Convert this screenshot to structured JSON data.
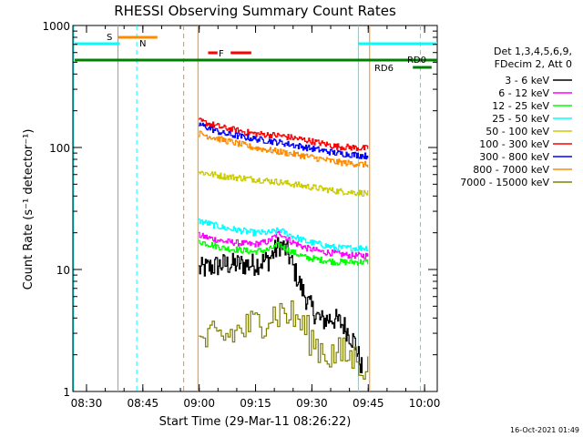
{
  "chart_data": {
    "type": "line",
    "title": "RHESSI Observing Summary Count Rates",
    "xlabel": "Start Time (29-Mar-11 08:26:22)",
    "ylabel": "Count Rate (s⁻¹ detector⁻¹)",
    "yscale": "log",
    "ylim": [
      1,
      1000
    ],
    "xlim_minutes": [
      0,
      97
    ],
    "x_tick_labels": [
      "08:30",
      "08:45",
      "09:00",
      "09:15",
      "09:30",
      "09:45",
      "10:00"
    ],
    "x_tick_minutes": [
      3.63,
      18.63,
      33.63,
      48.63,
      63.63,
      78.63,
      93.63
    ],
    "y_tick_labels": [
      "1",
      "10",
      "100",
      "1000"
    ],
    "y_tick_values": [
      1,
      10,
      100,
      1000
    ],
    "legend_header": [
      "Det 1,3,4,5,6,9,",
      "FDecim 2, Att 0"
    ],
    "series": [
      {
        "name": "3 - 6 keV",
        "color": "#000000",
        "x": [
          33.5,
          40,
          48,
          52,
          55,
          57,
          60,
          63,
          66,
          69,
          72,
          75,
          77
        ],
        "values": [
          10,
          11,
          11,
          12,
          16,
          14,
          8,
          5,
          3.8,
          4.0,
          3.5,
          2.5,
          1.5
        ]
      },
      {
        "name": "6 - 12 keV",
        "color": "#ff00ff",
        "x": [
          33.5,
          40,
          48,
          52,
          55,
          58,
          62,
          66,
          70,
          74,
          78.5
        ],
        "values": [
          19,
          17,
          16,
          17,
          20,
          17,
          15,
          14,
          13.5,
          13,
          13
        ]
      },
      {
        "name": "12 - 25 keV",
        "color": "#00ff00",
        "x": [
          33.5,
          40,
          48,
          52,
          55,
          58,
          62,
          66,
          70,
          74,
          78.5
        ],
        "values": [
          17,
          15,
          14,
          14.5,
          16,
          14,
          12.5,
          12,
          11.5,
          11.5,
          11.5
        ]
      },
      {
        "name": "25 - 50 keV",
        "color": "#00ffff",
        "x": [
          33.5,
          40,
          48,
          52,
          55,
          58,
          62,
          66,
          70,
          74,
          78.5
        ],
        "values": [
          25,
          22,
          20,
          20,
          21,
          19,
          17,
          16,
          15,
          15,
          15
        ]
      },
      {
        "name": "50 - 100 keV",
        "color": "#cccc00",
        "x": [
          33.5,
          40,
          48,
          55,
          62,
          70,
          78.5
        ],
        "values": [
          63,
          58,
          55,
          52,
          48,
          44,
          42
        ]
      },
      {
        "name": "100 - 300 keV",
        "color": "#ff0000",
        "x": [
          33.5,
          40,
          48,
          55,
          62,
          70,
          78.5
        ],
        "values": [
          165,
          145,
          130,
          125,
          115,
          102,
          98
        ]
      },
      {
        "name": "300 - 800 keV",
        "color": "#0000ff",
        "x": [
          33.5,
          40,
          48,
          55,
          62,
          70,
          78.5
        ],
        "values": [
          155,
          130,
          118,
          110,
          100,
          90,
          85
        ]
      },
      {
        "name": "800 - 7000 keV",
        "color": "#ff8c00",
        "x": [
          33.5,
          40,
          48,
          55,
          62,
          70,
          78.5
        ],
        "values": [
          130,
          115,
          100,
          92,
          85,
          76,
          72
        ]
      },
      {
        "name": "7000 - 15000 keV",
        "color": "#808000",
        "x": [
          33.5,
          40,
          48,
          52,
          56,
          60,
          64,
          68,
          72,
          76,
          78.5
        ],
        "values": [
          2.5,
          2.8,
          3.5,
          4.2,
          4.5,
          3.8,
          2.5,
          2.0,
          2.0,
          1.8,
          1.5
        ]
      }
    ],
    "flags": [
      {
        "label": "S",
        "color": "#ff8c00"
      },
      {
        "label": "N",
        "color": "#00ffff"
      },
      {
        "label": "F",
        "color": "#ff0000"
      },
      {
        "label": "RD0",
        "color": "#008000"
      },
      {
        "label": "RD6",
        "color": "#008000"
      }
    ],
    "timestamp": "16-Oct-2021 01:49"
  }
}
